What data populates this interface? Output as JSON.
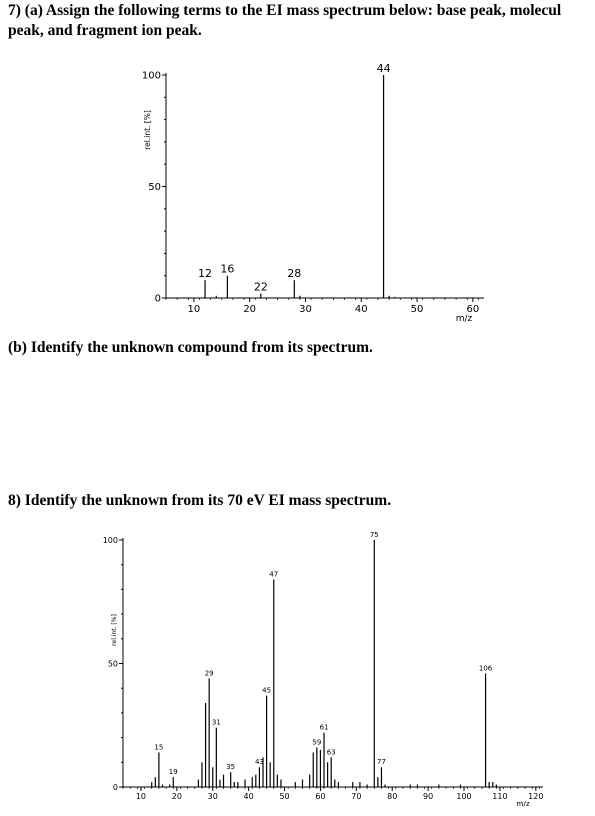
{
  "questions": {
    "q7a_line1": "7) (a) Assign the following terms to the EI mass spectrum below: base peak, molecul",
    "q7a_line2": "peak, and fragment ion peak.",
    "q7b": "(b) Identify the unknown compound from its spectrum.",
    "q8": "8) Identify the unknown from its 70 eV EI mass spectrum."
  },
  "chart_data": [
    {
      "type": "bar",
      "ylabel": "rel.int. [%]",
      "xlabel": "m/z",
      "xlim": [
        5,
        62
      ],
      "ylim": [
        0,
        100
      ],
      "x_ticks": [
        10,
        20,
        30,
        40,
        50,
        60
      ],
      "y_ticks": [
        0,
        50,
        100
      ],
      "peaks": [
        {
          "mz": 12,
          "intensity": 8,
          "label": "12"
        },
        {
          "mz": 14,
          "intensity": 1,
          "label": ""
        },
        {
          "mz": 16,
          "intensity": 10,
          "label": "16"
        },
        {
          "mz": 22,
          "intensity": 2,
          "label": "22"
        },
        {
          "mz": 28,
          "intensity": 8,
          "label": "28"
        },
        {
          "mz": 29,
          "intensity": 1,
          "label": ""
        },
        {
          "mz": 44,
          "intensity": 100,
          "label": "44"
        },
        {
          "mz": 45,
          "intensity": 1,
          "label": ""
        },
        {
          "mz": 46,
          "intensity": 0.5,
          "label": ""
        }
      ]
    },
    {
      "type": "bar",
      "ylabel": "rel.int. [%]",
      "xlabel": "m/z",
      "xlim": [
        5,
        122
      ],
      "ylim": [
        0,
        100
      ],
      "x_ticks": [
        10,
        20,
        30,
        40,
        50,
        60,
        70,
        80,
        90,
        100,
        110,
        120
      ],
      "y_ticks": [
        0,
        50,
        100
      ],
      "peaks": [
        {
          "mz": 13,
          "intensity": 2,
          "label": ""
        },
        {
          "mz": 14,
          "intensity": 4,
          "label": ""
        },
        {
          "mz": 15,
          "intensity": 14,
          "label": "15"
        },
        {
          "mz": 16,
          "intensity": 1,
          "label": ""
        },
        {
          "mz": 18,
          "intensity": 1,
          "label": ""
        },
        {
          "mz": 19,
          "intensity": 4,
          "label": "19"
        },
        {
          "mz": 26,
          "intensity": 3,
          "label": ""
        },
        {
          "mz": 27,
          "intensity": 10,
          "label": ""
        },
        {
          "mz": 28,
          "intensity": 34,
          "label": ""
        },
        {
          "mz": 29,
          "intensity": 44,
          "label": "29"
        },
        {
          "mz": 30,
          "intensity": 8,
          "label": ""
        },
        {
          "mz": 31,
          "intensity": 24,
          "label": "31"
        },
        {
          "mz": 32,
          "intensity": 3,
          "label": ""
        },
        {
          "mz": 33,
          "intensity": 5,
          "label": ""
        },
        {
          "mz": 35,
          "intensity": 6,
          "label": "35"
        },
        {
          "mz": 36,
          "intensity": 2,
          "label": ""
        },
        {
          "mz": 37,
          "intensity": 2,
          "label": ""
        },
        {
          "mz": 39,
          "intensity": 3,
          "label": ""
        },
        {
          "mz": 41,
          "intensity": 4,
          "label": ""
        },
        {
          "mz": 42,
          "intensity": 5,
          "label": ""
        },
        {
          "mz": 43,
          "intensity": 8,
          "label": "43"
        },
        {
          "mz": 44,
          "intensity": 12,
          "label": ""
        },
        {
          "mz": 45,
          "intensity": 37,
          "label": "45"
        },
        {
          "mz": 46,
          "intensity": 10,
          "label": ""
        },
        {
          "mz": 47,
          "intensity": 84,
          "label": "47"
        },
        {
          "mz": 48,
          "intensity": 5,
          "label": ""
        },
        {
          "mz": 49,
          "intensity": 3,
          "label": ""
        },
        {
          "mz": 53,
          "intensity": 2,
          "label": ""
        },
        {
          "mz": 55,
          "intensity": 3,
          "label": ""
        },
        {
          "mz": 57,
          "intensity": 5,
          "label": ""
        },
        {
          "mz": 58,
          "intensity": 14,
          "label": ""
        },
        {
          "mz": 59,
          "intensity": 16,
          "label": "59"
        },
        {
          "mz": 60,
          "intensity": 15,
          "label": ""
        },
        {
          "mz": 61,
          "intensity": 22,
          "label": "61"
        },
        {
          "mz": 62,
          "intensity": 10,
          "label": ""
        },
        {
          "mz": 63,
          "intensity": 12,
          "label": "63"
        },
        {
          "mz": 64,
          "intensity": 3,
          "label": ""
        },
        {
          "mz": 65,
          "intensity": 2,
          "label": ""
        },
        {
          "mz": 69,
          "intensity": 2,
          "label": ""
        },
        {
          "mz": 71,
          "intensity": 2,
          "label": ""
        },
        {
          "mz": 73,
          "intensity": 1,
          "label": ""
        },
        {
          "mz": 75,
          "intensity": 100,
          "label": "75"
        },
        {
          "mz": 76,
          "intensity": 4,
          "label": ""
        },
        {
          "mz": 77,
          "intensity": 8,
          "label": "77"
        },
        {
          "mz": 78,
          "intensity": 1,
          "label": ""
        },
        {
          "mz": 85,
          "intensity": 1,
          "label": ""
        },
        {
          "mz": 87,
          "intensity": 1,
          "label": ""
        },
        {
          "mz": 93,
          "intensity": 1,
          "label": ""
        },
        {
          "mz": 99,
          "intensity": 1,
          "label": ""
        },
        {
          "mz": 106,
          "intensity": 46,
          "label": "106"
        },
        {
          "mz": 107,
          "intensity": 2,
          "label": ""
        },
        {
          "mz": 108,
          "intensity": 2,
          "label": ""
        },
        {
          "mz": 109,
          "intensity": 1,
          "label": ""
        }
      ]
    }
  ]
}
